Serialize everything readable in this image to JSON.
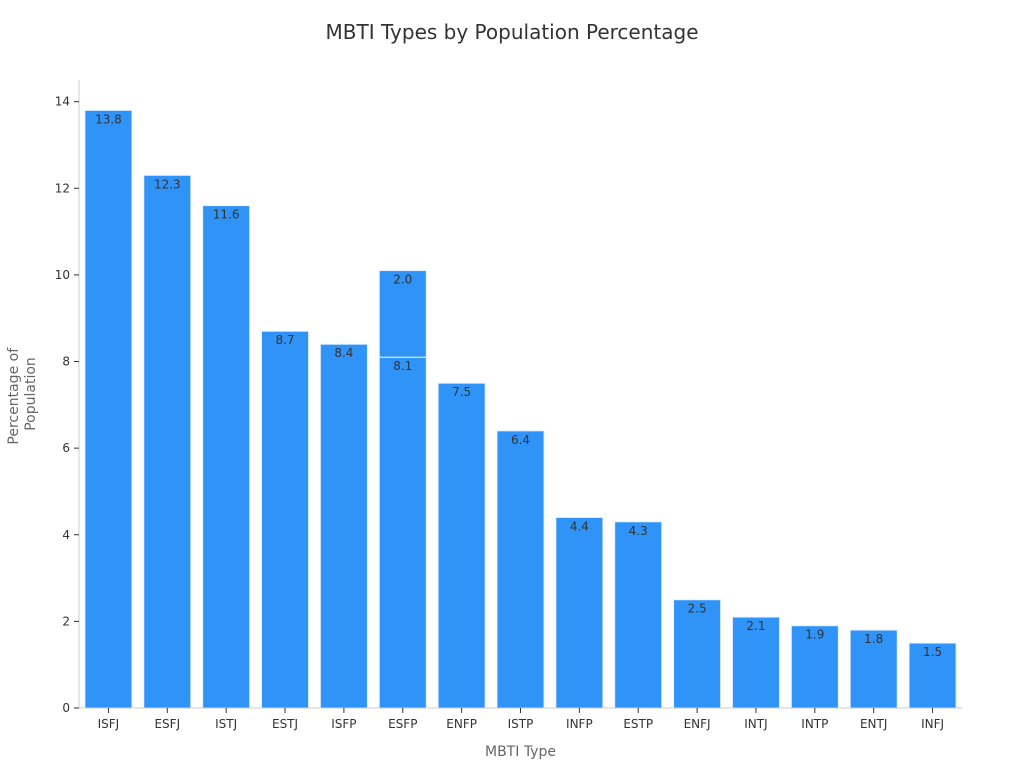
{
  "chart_data": {
    "type": "bar",
    "title": "MBTI Types by Population Percentage",
    "xlabel": "MBTI Type",
    "ylabel_lines": [
      "Percentage of",
      "Population"
    ],
    "ylim": [
      0,
      14.5
    ],
    "yticks": [
      0,
      2,
      4,
      6,
      8,
      10,
      12,
      14
    ],
    "grid": false,
    "categories": [
      "ISFJ",
      "ESFJ",
      "ISTJ",
      "ESTJ",
      "ISFP",
      "ESFP",
      "ENFP",
      "ISTP",
      "INFP",
      "ESTP",
      "ENFJ",
      "INTJ",
      "INTP",
      "ENTJ",
      "INFJ"
    ],
    "series": [
      {
        "values": [
          13.8,
          12.3,
          11.6,
          8.7,
          8.4,
          8.1,
          7.5,
          6.4,
          4.4,
          4.3,
          2.5,
          2.1,
          1.9,
          1.8,
          1.5
        ]
      },
      {
        "values": [
          0,
          0,
          0,
          0,
          0,
          2.0,
          0,
          0,
          0,
          0,
          0,
          0,
          0,
          0,
          0
        ]
      }
    ],
    "colors": {
      "bar": "#3093f8",
      "bar_edge": "#e8f2ff",
      "axis": "#cccccc",
      "tick_text": "#333333",
      "label_text": "#666666",
      "data_label": "#333333"
    }
  }
}
